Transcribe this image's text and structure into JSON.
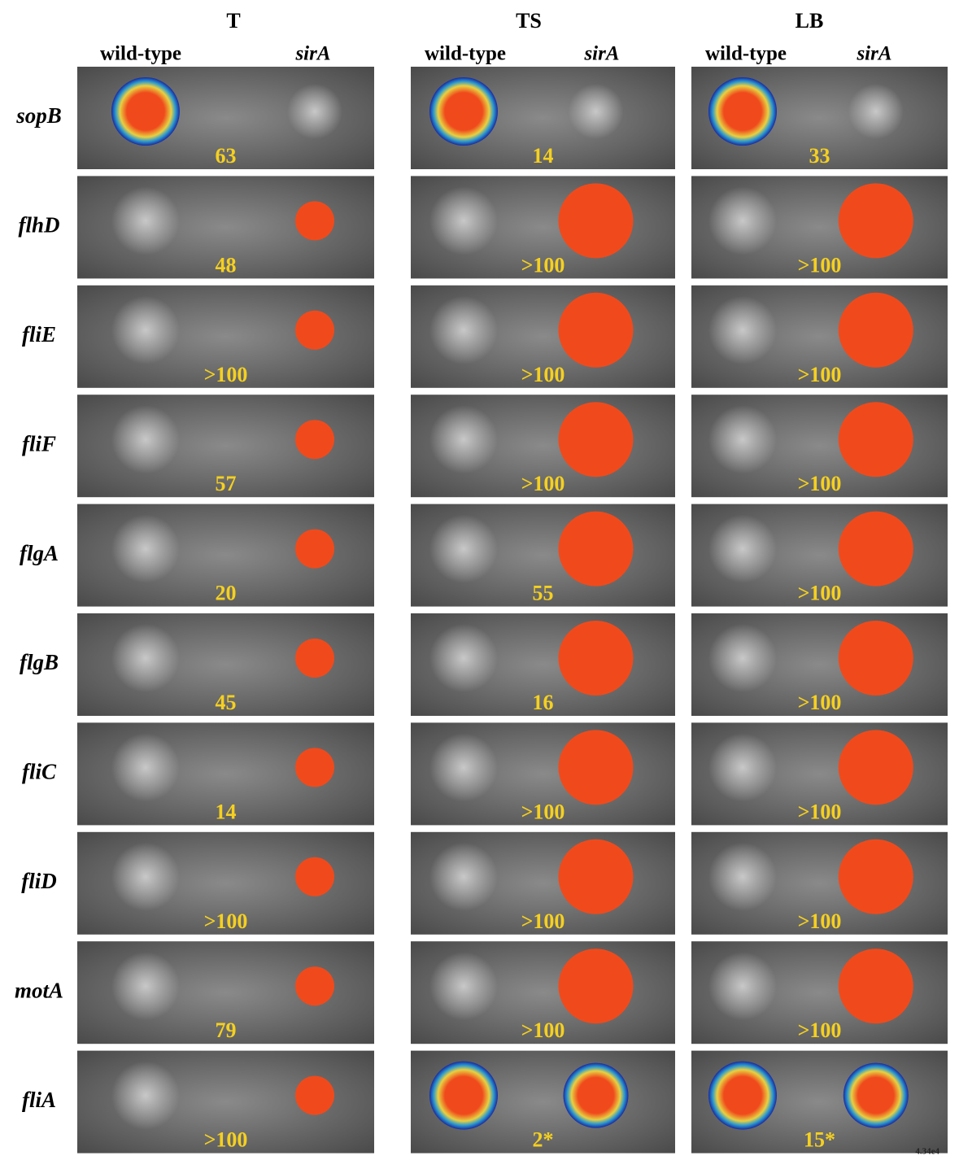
{
  "columns": [
    {
      "title": "T",
      "wild": "wild-type",
      "mutant": "sirA"
    },
    {
      "title": "TS",
      "wild": "wild-type",
      "mutant": "sirA"
    },
    {
      "title": "LB",
      "wild": "wild-type",
      "mutant": "sirA"
    }
  ],
  "rows": [
    {
      "gene": "sopB",
      "ratios": [
        "63",
        "14",
        "33"
      ]
    },
    {
      "gene": "flhD",
      "ratios": [
        "48",
        ">100",
        ">100"
      ]
    },
    {
      "gene": "fliE",
      "ratios": [
        ">100",
        ">100",
        ">100"
      ]
    },
    {
      "gene": "fliF",
      "ratios": [
        "57",
        ">100",
        ">100"
      ]
    },
    {
      "gene": "flgA",
      "ratios": [
        "20",
        "55",
        ">100"
      ]
    },
    {
      "gene": "flgB",
      "ratios": [
        "45",
        "16",
        ">100"
      ]
    },
    {
      "gene": "fliC",
      "ratios": [
        "14",
        ">100",
        ">100"
      ]
    },
    {
      "gene": "fliD",
      "ratios": [
        ">100",
        ">100",
        ">100"
      ]
    },
    {
      "gene": "motA",
      "ratios": [
        "79",
        ">100",
        ">100"
      ]
    },
    {
      "gene": "fliA",
      "ratios": [
        ">100",
        "2*",
        "15*"
      ]
    }
  ],
  "scale_label": "4.34e4"
}
